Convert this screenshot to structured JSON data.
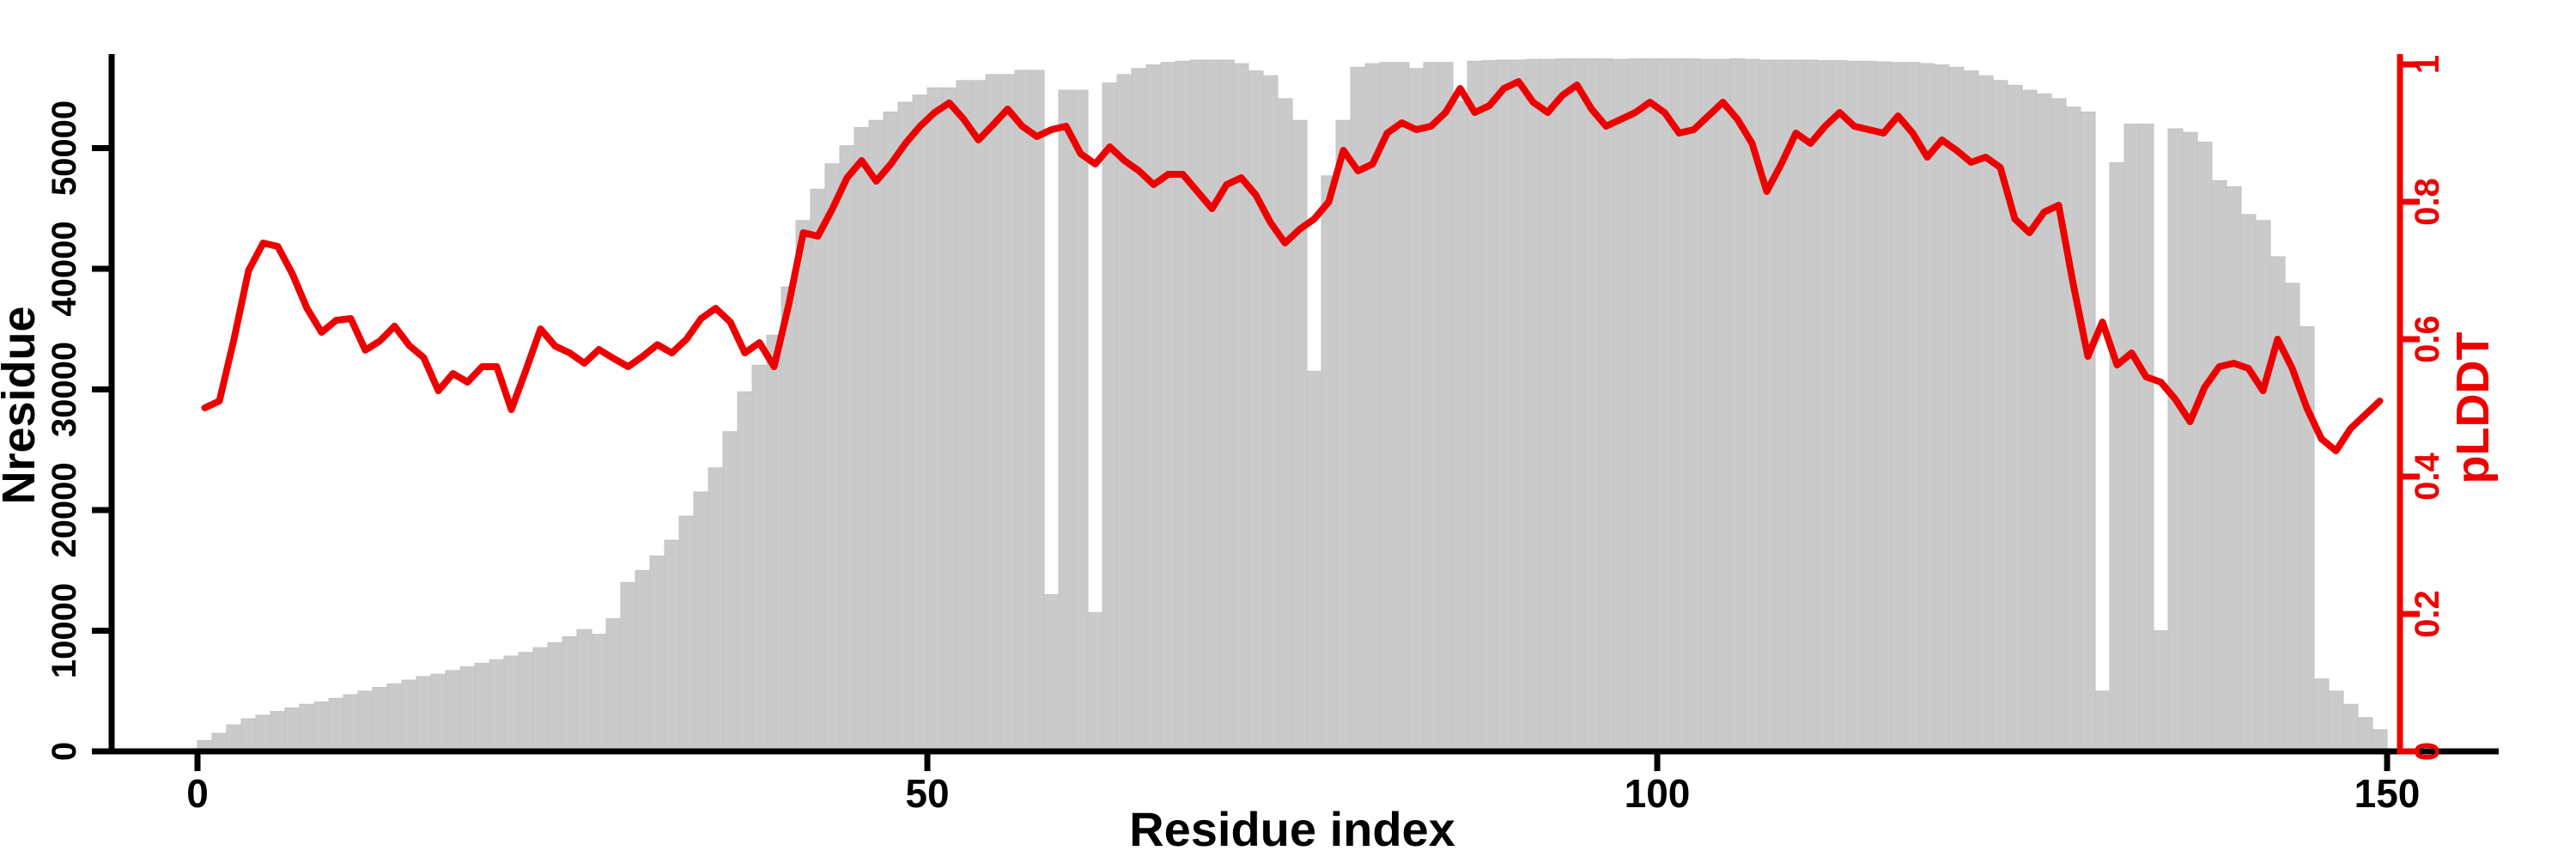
{
  "chart_data": {
    "type": "bar+line (dual y-axis)",
    "title": "",
    "xlabel": "Residue index",
    "ylabel_left": "Nresidue",
    "ylabel_right": "pLDDT",
    "x_unit": "residue",
    "x_range": [
      0,
      150
    ],
    "y_left_lim": [
      0,
      57500
    ],
    "y_right_lim": [
      0,
      1
    ],
    "grid": "off",
    "legend": "none",
    "x_tick_values": [
      0,
      50,
      100,
      150
    ],
    "x_tick_labels": [
      "0",
      "50",
      "100",
      "150"
    ],
    "y_left_tick_values": [
      0,
      10000,
      20000,
      30000,
      40000,
      50000
    ],
    "y_left_tick_labels": [
      "0",
      "10000",
      "20000",
      "30000",
      "40000",
      "50000"
    ],
    "y_right_tick_values": [
      0,
      0.2,
      0.4,
      0.6,
      0.8,
      1
    ],
    "y_right_tick_labels": [
      "0",
      "0.2",
      "0.4",
      "0.6",
      "0.8",
      "1"
    ],
    "colors": {
      "bar_fill": "#cacaca",
      "bar_edge": "#c2c2c2",
      "line": "#ee0000",
      "left_axis": "#000000",
      "right_axis": "#ee0000",
      "background": "#ffffff"
    },
    "x": [
      1,
      2,
      3,
      4,
      5,
      6,
      7,
      8,
      9,
      10,
      11,
      12,
      13,
      14,
      15,
      16,
      17,
      18,
      19,
      20,
      21,
      22,
      23,
      24,
      25,
      26,
      27,
      28,
      29,
      30,
      31,
      32,
      33,
      34,
      35,
      36,
      37,
      38,
      39,
      40,
      41,
      42,
      43,
      44,
      45,
      46,
      47,
      48,
      49,
      50,
      51,
      52,
      53,
      54,
      55,
      56,
      57,
      58,
      59,
      60,
      61,
      62,
      63,
      64,
      65,
      66,
      67,
      68,
      69,
      70,
      71,
      72,
      73,
      74,
      75,
      76,
      77,
      78,
      79,
      80,
      81,
      82,
      83,
      84,
      85,
      86,
      87,
      88,
      89,
      90,
      91,
      92,
      93,
      94,
      95,
      96,
      97,
      98,
      99,
      100,
      101,
      102,
      103,
      104,
      105,
      106,
      107,
      108,
      109,
      110,
      111,
      112,
      113,
      114,
      115,
      116,
      117,
      118,
      119,
      120,
      121,
      122,
      123,
      124,
      125,
      126,
      127,
      128,
      129,
      130,
      131,
      132,
      133,
      134,
      135,
      136,
      137,
      138,
      139,
      140,
      141,
      142,
      143,
      144,
      145,
      146,
      147,
      148,
      149,
      150
    ],
    "series": [
      {
        "name": "Nresidue",
        "type": "bar",
        "axis": "left",
        "values": [
          900,
          1500,
          2200,
          2700,
          3000,
          3300,
          3600,
          3900,
          4100,
          4400,
          4700,
          5000,
          5300,
          5600,
          5900,
          6200,
          6400,
          6700,
          7000,
          7300,
          7600,
          7900,
          8200,
          8600,
          9000,
          9500,
          10100,
          9700,
          11000,
          14000,
          15000,
          16200,
          17500,
          19500,
          21500,
          23500,
          26500,
          29800,
          32000,
          34500,
          38500,
          44000,
          46600,
          48700,
          50200,
          51700,
          52300,
          53000,
          53800,
          54400,
          55000,
          55000,
          55600,
          55600,
          56100,
          56100,
          56450,
          56450,
          13000,
          54800,
          54800,
          11500,
          55400,
          56100,
          56600,
          56900,
          57100,
          57200,
          57300,
          57300,
          57300,
          57000,
          56400,
          56000,
          54100,
          52300,
          31500,
          47700,
          52300,
          56700,
          57000,
          57100,
          57100,
          56600,
          57100,
          57100,
          53900,
          57200,
          57250,
          57300,
          57300,
          57350,
          57350,
          57400,
          57400,
          57400,
          57400,
          57350,
          57400,
          57400,
          57400,
          57400,
          57400,
          57350,
          57350,
          57400,
          57350,
          57300,
          57300,
          57300,
          57300,
          57250,
          57250,
          57200,
          57200,
          57150,
          57100,
          57100,
          57000,
          56900,
          56700,
          56400,
          56000,
          55600,
          55200,
          54800,
          54500,
          54100,
          53400,
          53000,
          5000,
          48800,
          52000,
          52000,
          10000,
          51600,
          51300,
          50500,
          47300,
          46800,
          44500,
          44000,
          41000,
          38800,
          35200,
          6000,
          5000,
          3900,
          2800,
          1800
        ]
      },
      {
        "name": "pLDDT",
        "type": "line",
        "axis": "right",
        "values": [
          0.5,
          0.51,
          0.6,
          0.7,
          0.74,
          0.735,
          0.695,
          0.645,
          0.61,
          0.6275,
          0.63,
          0.584,
          0.5975,
          0.619,
          0.591,
          0.573,
          0.525,
          0.55,
          0.5375,
          0.56,
          0.56,
          0.4975,
          0.555,
          0.615,
          0.59,
          0.58,
          0.565,
          0.585,
          0.572,
          0.56,
          0.575,
          0.592,
          0.58,
          0.6,
          0.63,
          0.645,
          0.625,
          0.58,
          0.595,
          0.56,
          0.65,
          0.755,
          0.75,
          0.79,
          0.835,
          0.86,
          0.83,
          0.855,
          0.885,
          0.91,
          0.93,
          0.944,
          0.92,
          0.89,
          0.912,
          0.935,
          0.91,
          0.895,
          0.905,
          0.91,
          0.87,
          0.855,
          0.88,
          0.86,
          0.845,
          0.825,
          0.84,
          0.84,
          0.815,
          0.79,
          0.825,
          0.835,
          0.81,
          0.77,
          0.74,
          0.76,
          0.775,
          0.8,
          0.875,
          0.845,
          0.855,
          0.9,
          0.915,
          0.905,
          0.91,
          0.93,
          0.965,
          0.93,
          0.94,
          0.965,
          0.975,
          0.945,
          0.93,
          0.955,
          0.97,
          0.935,
          0.91,
          0.92,
          0.93,
          0.945,
          0.93,
          0.9,
          0.905,
          0.925,
          0.945,
          0.92,
          0.885,
          0.815,
          0.855,
          0.9,
          0.885,
          0.91,
          0.93,
          0.91,
          0.905,
          0.9,
          0.925,
          0.9,
          0.865,
          0.89,
          0.875,
          0.8575,
          0.865,
          0.85,
          0.775,
          0.755,
          0.785,
          0.795,
          0.68,
          0.575,
          0.625,
          0.5625,
          0.58,
          0.545,
          0.5375,
          0.5125,
          0.48,
          0.53,
          0.56,
          0.565,
          0.5575,
          0.525,
          0.6,
          0.5575,
          0.5,
          0.455,
          0.4375,
          0.47,
          0.49,
          0.51
        ]
      }
    ],
    "layout_hint": {
      "note": "bars of Nresidue per residue index with short/missing bars at residues 59, 62, 77, 131, 135 and collapse after residue 145"
    }
  }
}
